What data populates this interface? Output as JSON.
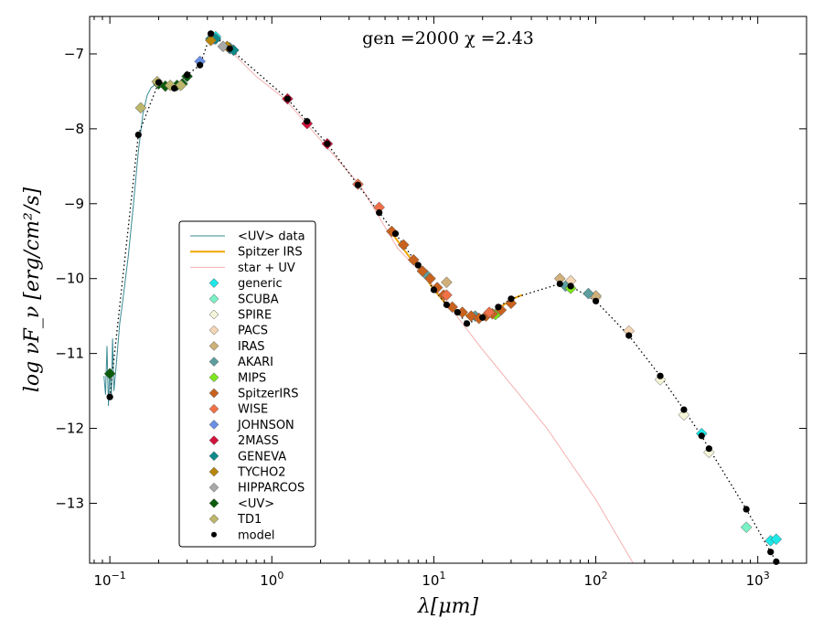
{
  "chart_data": {
    "type": "scatter",
    "title": "gen =2000 χ =2.43",
    "xlabel": "λ[μm]",
    "ylabel": "log νF_ν [erg/cm²/s]",
    "xscale": "log",
    "xlim": [
      0.075,
      2000
    ],
    "ylim": [
      -13.8,
      -6.5
    ],
    "x_tick_labels": [
      {
        "value": 0.1,
        "base": "10",
        "exp": "−1"
      },
      {
        "value": 1,
        "base": "10",
        "exp": "0"
      },
      {
        "value": 10,
        "base": "10",
        "exp": "1"
      },
      {
        "value": 100,
        "base": "10",
        "exp": "2"
      },
      {
        "value": 1000,
        "base": "10",
        "exp": "3"
      }
    ],
    "y_ticks": [
      -7,
      -8,
      -9,
      -10,
      -11,
      -12,
      -13
    ],
    "y_tick_labels": [
      "−7",
      "−8",
      "−9",
      "−10",
      "−11",
      "−12",
      "−13"
    ],
    "legend_position": "lower-left",
    "legend": [
      {
        "label": "<UV> data",
        "kind": "line",
        "color": "#3a8a93"
      },
      {
        "label": "Spitzer IRS",
        "kind": "line",
        "color": "#f0a500"
      },
      {
        "label": "star + UV",
        "kind": "line",
        "color": "#f4b0b0"
      },
      {
        "label": "generic",
        "kind": "diamond",
        "color": "#1ee8e8"
      },
      {
        "label": "SCUBA",
        "kind": "diamond",
        "color": "#7af2c6"
      },
      {
        "label": "SPIRE",
        "kind": "diamond",
        "color": "#f4f4d8"
      },
      {
        "label": "PACS",
        "kind": "diamond",
        "color": "#f5d6b4"
      },
      {
        "label": "IRAS",
        "kind": "diamond",
        "color": "#d0b07a"
      },
      {
        "label": "AKARI",
        "kind": "diamond",
        "color": "#5d9e9e"
      },
      {
        "label": "MIPS",
        "kind": "diamond",
        "color": "#7ee81c"
      },
      {
        "label": "SpitzerIRS",
        "kind": "diamond",
        "color": "#c8621e"
      },
      {
        "label": "WISE",
        "kind": "diamond",
        "color": "#f07048"
      },
      {
        "label": "JOHNSON",
        "kind": "diamond",
        "color": "#6a90e6"
      },
      {
        "label": "2MASS",
        "kind": "diamond",
        "color": "#d4123c"
      },
      {
        "label": "GENEVA",
        "kind": "diamond",
        "color": "#0e8a8a"
      },
      {
        "label": "TYCHO2",
        "kind": "diamond",
        "color": "#b8860b"
      },
      {
        "label": "HIPPARCOS",
        "kind": "diamond",
        "color": "#a8a8a8"
      },
      {
        "label": "<UV>",
        "kind": "diamond",
        "color": "#0c5c0c"
      },
      {
        "label": "TD1",
        "kind": "diamond",
        "color": "#bdb76b"
      },
      {
        "label": "model",
        "kind": "dot",
        "color": "#000000"
      }
    ],
    "series": [
      {
        "name": "<UV> data",
        "kind": "line",
        "color": "#3a8a93",
        "points": [
          [
            0.092,
            -11.3
          ],
          [
            0.094,
            -11.55
          ],
          [
            0.096,
            -10.9
          ],
          [
            0.098,
            -11.7
          ],
          [
            0.1,
            -11.2
          ],
          [
            0.102,
            -11.6
          ],
          [
            0.104,
            -10.8
          ],
          [
            0.106,
            -11.5
          ],
          [
            0.11,
            -11.1
          ],
          [
            0.115,
            -10.6
          ],
          [
            0.12,
            -10.3
          ],
          [
            0.13,
            -9.7
          ],
          [
            0.14,
            -9.0
          ],
          [
            0.15,
            -8.3
          ],
          [
            0.16,
            -7.8
          ],
          [
            0.17,
            -7.55
          ],
          [
            0.18,
            -7.45
          ],
          [
            0.2,
            -7.38
          ],
          [
            0.22,
            -7.42
          ],
          [
            0.25,
            -7.44
          ],
          [
            0.28,
            -7.38
          ],
          [
            0.32,
            -7.3
          ]
        ]
      },
      {
        "name": "Spitzer IRS",
        "kind": "line",
        "color": "#f0a500",
        "points": [
          [
            5.3,
            -9.35
          ],
          [
            6,
            -9.5
          ],
          [
            7,
            -9.7
          ],
          [
            8,
            -9.85
          ],
          [
            9,
            -10.0
          ],
          [
            10,
            -10.15
          ],
          [
            11,
            -10.25
          ],
          [
            12,
            -10.35
          ],
          [
            13,
            -10.42
          ],
          [
            15,
            -10.47
          ],
          [
            17,
            -10.5
          ],
          [
            19,
            -10.52
          ],
          [
            21,
            -10.48
          ],
          [
            23,
            -10.45
          ],
          [
            26,
            -10.38
          ],
          [
            30,
            -10.28
          ],
          [
            35,
            -10.22
          ]
        ]
      },
      {
        "name": "star + UV",
        "kind": "line",
        "color": "#f4b0b0",
        "points": [
          [
            0.55,
            -6.95
          ],
          [
            0.8,
            -7.3
          ],
          [
            1.2,
            -7.6
          ],
          [
            2.0,
            -8.15
          ],
          [
            3.5,
            -8.75
          ],
          [
            6,
            -9.6
          ],
          [
            10,
            -10.1
          ],
          [
            20,
            -10.95
          ],
          [
            50,
            -12.0
          ],
          [
            100,
            -12.95
          ],
          [
            170,
            -13.8
          ]
        ]
      },
      {
        "name": "model",
        "kind": "dot",
        "color": "#000000",
        "points": [
          [
            0.1,
            -11.58
          ],
          [
            0.15,
            -8.08
          ],
          [
            0.2,
            -7.38
          ],
          [
            0.25,
            -7.46
          ],
          [
            0.3,
            -7.28
          ],
          [
            0.36,
            -7.15
          ],
          [
            0.42,
            -6.73
          ],
          [
            0.55,
            -6.93
          ],
          [
            1.25,
            -7.6
          ],
          [
            1.65,
            -7.9
          ],
          [
            2.2,
            -8.2
          ],
          [
            3.4,
            -8.75
          ],
          [
            4.6,
            -9.12
          ],
          [
            5.8,
            -9.4
          ],
          [
            8,
            -9.82
          ],
          [
            10,
            -10.15
          ],
          [
            12,
            -10.35
          ],
          [
            14,
            -10.45
          ],
          [
            16,
            -10.6
          ],
          [
            20,
            -10.52
          ],
          [
            25,
            -10.38
          ],
          [
            30,
            -10.27
          ],
          [
            60,
            -10.07
          ],
          [
            70,
            -10.1
          ],
          [
            100,
            -10.3
          ],
          [
            160,
            -10.76
          ],
          [
            250,
            -11.3
          ],
          [
            350,
            -11.75
          ],
          [
            450,
            -12.1
          ],
          [
            500,
            -12.27
          ],
          [
            850,
            -13.08
          ],
          [
            1200,
            -13.65
          ],
          [
            1300,
            -13.78
          ]
        ]
      },
      {
        "name": "generic",
        "kind": "diamond",
        "color": "#1ee8e8",
        "points": [
          [
            0.45,
            -6.77
          ],
          [
            1200,
            -13.5
          ],
          [
            1300,
            -13.48
          ],
          [
            450,
            -12.07
          ]
        ]
      },
      {
        "name": "SCUBA",
        "kind": "diamond",
        "color": "#7af2c6",
        "points": [
          [
            850,
            -13.32
          ]
        ]
      },
      {
        "name": "SPIRE",
        "kind": "diamond",
        "color": "#f4f4d8",
        "points": [
          [
            250,
            -11.35
          ],
          [
            350,
            -11.82
          ],
          [
            500,
            -12.32
          ]
        ]
      },
      {
        "name": "PACS",
        "kind": "diamond",
        "color": "#f5d6b4",
        "points": [
          [
            70,
            -10.03
          ],
          [
            100,
            -10.25
          ],
          [
            160,
            -10.7
          ]
        ]
      },
      {
        "name": "IRAS",
        "kind": "diamond",
        "color": "#d0b07a",
        "points": [
          [
            12,
            -10.05
          ],
          [
            25,
            -10.45
          ],
          [
            60,
            -10.0
          ],
          [
            100,
            -10.23
          ]
        ]
      },
      {
        "name": "AKARI",
        "kind": "diamond",
        "color": "#5d9e9e",
        "points": [
          [
            9,
            -9.95
          ],
          [
            18,
            -10.5
          ],
          [
            65,
            -10.1
          ],
          [
            90,
            -10.2
          ]
        ]
      },
      {
        "name": "MIPS",
        "kind": "diamond",
        "color": "#7ee81c",
        "points": [
          [
            24,
            -10.48
          ],
          [
            70,
            -10.13
          ]
        ]
      },
      {
        "name": "SpitzerIRS",
        "kind": "diamond",
        "color": "#c8621e",
        "points": [
          [
            5.5,
            -9.37
          ],
          [
            6.5,
            -9.55
          ],
          [
            7.5,
            -9.75
          ],
          [
            8.5,
            -9.9
          ],
          [
            9.5,
            -10.0
          ],
          [
            10.5,
            -10.12
          ],
          [
            11.5,
            -10.22
          ],
          [
            13,
            -10.38
          ],
          [
            15,
            -10.45
          ],
          [
            17,
            -10.5
          ],
          [
            19,
            -10.53
          ],
          [
            21,
            -10.5
          ],
          [
            23,
            -10.47
          ],
          [
            26,
            -10.42
          ],
          [
            30,
            -10.33
          ]
        ]
      },
      {
        "name": "WISE",
        "kind": "diamond",
        "color": "#f07048",
        "points": [
          [
            3.4,
            -8.74
          ],
          [
            4.6,
            -9.05
          ],
          [
            12,
            -10.22
          ],
          [
            22,
            -10.45
          ]
        ]
      },
      {
        "name": "JOHNSON",
        "kind": "diamond",
        "color": "#6a90e6",
        "points": [
          [
            0.36,
            -7.1
          ],
          [
            0.44,
            -6.8
          ],
          [
            0.55,
            -6.93
          ]
        ]
      },
      {
        "name": "2MASS",
        "kind": "diamond",
        "color": "#d4123c",
        "points": [
          [
            1.25,
            -7.6
          ],
          [
            1.65,
            -7.93
          ],
          [
            2.2,
            -8.2
          ]
        ]
      },
      {
        "name": "GENEVA",
        "kind": "diamond",
        "color": "#0e8a8a",
        "points": [
          [
            0.42,
            -6.8
          ],
          [
            0.45,
            -6.8
          ],
          [
            0.55,
            -6.92
          ],
          [
            0.58,
            -6.95
          ]
        ]
      },
      {
        "name": "TYCHO2",
        "kind": "diamond",
        "color": "#b8860b",
        "points": [
          [
            0.42,
            -6.82
          ],
          [
            0.53,
            -6.9
          ]
        ]
      },
      {
        "name": "HIPPARCOS",
        "kind": "diamond",
        "color": "#a8a8a8",
        "points": [
          [
            0.5,
            -6.9
          ]
        ]
      },
      {
        "name": "<UV>",
        "kind": "diamond",
        "color": "#0c5c0c",
        "points": [
          [
            0.1,
            -11.27
          ],
          [
            0.2,
            -7.4
          ],
          [
            0.22,
            -7.43
          ],
          [
            0.26,
            -7.42
          ],
          [
            0.28,
            -7.4
          ],
          [
            0.3,
            -7.3
          ]
        ]
      },
      {
        "name": "TD1",
        "kind": "diamond",
        "color": "#bdb76b",
        "points": [
          [
            0.155,
            -7.72
          ],
          [
            0.196,
            -7.37
          ],
          [
            0.236,
            -7.42
          ],
          [
            0.274,
            -7.42
          ]
        ]
      }
    ]
  }
}
